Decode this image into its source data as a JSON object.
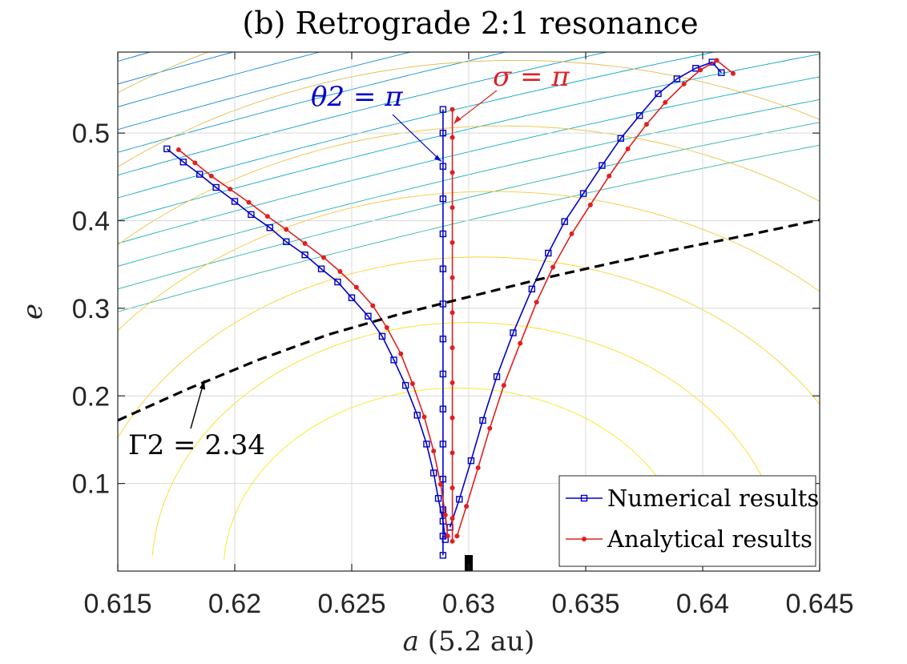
{
  "chart_data": {
    "type": "line",
    "title": "(b) Retrograde 2:1 resonance",
    "xlabel": "a (5.2 au)",
    "ylabel": "e",
    "xlim": [
      0.615,
      0.645
    ],
    "ylim": [
      0.0,
      0.5925
    ],
    "xticks": [
      0.615,
      0.62,
      0.625,
      0.63,
      0.635,
      0.64,
      0.645
    ],
    "xtick_labels": [
      "0.615",
      "0.62",
      "0.625",
      "0.63",
      "0.635",
      "0.64",
      "0.645"
    ],
    "yticks": [
      0.1,
      0.2,
      0.3,
      0.4,
      0.5
    ],
    "ytick_labels": [
      "0.1",
      "0.2",
      "0.3",
      "0.4",
      "0.5"
    ],
    "grid": true,
    "legend_position": "bottom-right",
    "legend": [
      {
        "label": "Numerical results",
        "color": "#0000cc",
        "marker": "square"
      },
      {
        "label": "Analytical results",
        "color": "#e02020",
        "marker": "dot"
      }
    ],
    "series": [
      {
        "name": "Numerical results",
        "color": "#0000cc",
        "marker": "square",
        "branches": [
          {
            "name": "left",
            "x": [
              0.6171,
              0.6178,
              0.6185,
              0.6192,
              0.62,
              0.6207,
              0.6215,
              0.6222,
              0.623,
              0.6237,
              0.6244,
              0.625,
              0.6257,
              0.6263,
              0.6268,
              0.6273,
              0.6278,
              0.6282,
              0.6285,
              0.6287,
              0.6289,
              0.629
            ],
            "y": [
              0.482,
              0.467,
              0.453,
              0.438,
              0.422,
              0.407,
              0.392,
              0.376,
              0.361,
              0.345,
              0.33,
              0.312,
              0.291,
              0.268,
              0.241,
              0.212,
              0.178,
              0.145,
              0.112,
              0.083,
              0.057,
              0.036
            ]
          },
          {
            "name": "middle",
            "x": [
              0.6289,
              0.6289,
              0.6289,
              0.6289,
              0.6289,
              0.6289,
              0.6289,
              0.6289,
              0.6289,
              0.6289,
              0.6289,
              0.6289,
              0.6289,
              0.6289,
              0.6289
            ],
            "y": [
              0.527,
              0.5,
              0.462,
              0.425,
              0.385,
              0.345,
              0.305,
              0.265,
              0.225,
              0.185,
              0.145,
              0.105,
              0.07,
              0.04,
              0.018
            ]
          },
          {
            "name": "right",
            "x": [
              0.6292,
              0.6296,
              0.6301,
              0.6306,
              0.6312,
              0.6319,
              0.6327,
              0.6334,
              0.6341,
              0.6349,
              0.6357,
              0.6365,
              0.6373,
              0.6381,
              0.6389,
              0.6397,
              0.6404,
              0.6408
            ],
            "y": [
              0.05,
              0.082,
              0.126,
              0.172,
              0.222,
              0.272,
              0.322,
              0.363,
              0.399,
              0.431,
              0.463,
              0.494,
              0.52,
              0.545,
              0.562,
              0.574,
              0.581,
              0.569
            ]
          }
        ]
      },
      {
        "name": "Analytical results",
        "color": "#e02020",
        "marker": "dot",
        "branches": [
          {
            "name": "left",
            "x": [
              0.6176,
              0.6183,
              0.619,
              0.6198,
              0.6206,
              0.6214,
              0.6222,
              0.623,
              0.6238,
              0.6245,
              0.6252,
              0.6259,
              0.6265,
              0.6271,
              0.6276,
              0.6281,
              0.6285,
              0.6288,
              0.629,
              0.6291
            ],
            "y": [
              0.481,
              0.466,
              0.451,
              0.436,
              0.421,
              0.405,
              0.39,
              0.374,
              0.358,
              0.342,
              0.324,
              0.303,
              0.278,
              0.248,
              0.214,
              0.176,
              0.137,
              0.099,
              0.064,
              0.04
            ]
          },
          {
            "name": "middle",
            "x": [
              0.6293,
              0.6293,
              0.6293,
              0.6293,
              0.6293,
              0.6293,
              0.6293,
              0.6293,
              0.6293,
              0.6293,
              0.6293,
              0.6293,
              0.6293,
              0.6293
            ],
            "y": [
              0.527,
              0.495,
              0.455,
              0.415,
              0.375,
              0.335,
              0.295,
              0.255,
              0.215,
              0.175,
              0.135,
              0.095,
              0.06,
              0.034
            ]
          },
          {
            "name": "right",
            "x": [
              0.6295,
              0.6299,
              0.6304,
              0.6309,
              0.6315,
              0.6322,
              0.6329,
              0.6336,
              0.6344,
              0.6352,
              0.636,
              0.6368,
              0.6376,
              0.6384,
              0.6392,
              0.6399,
              0.6406,
              0.6413
            ],
            "y": [
              0.04,
              0.074,
              0.118,
              0.163,
              0.212,
              0.26,
              0.307,
              0.347,
              0.385,
              0.418,
              0.451,
              0.482,
              0.51,
              0.535,
              0.556,
              0.572,
              0.583,
              0.568
            ]
          }
        ]
      },
      {
        "name": "Γ2 = 2.34",
        "color": "#000000",
        "style": "dashed",
        "x": [
          0.615,
          0.618,
          0.621,
          0.624,
          0.627,
          0.63,
          0.633,
          0.636,
          0.639,
          0.642,
          0.645
        ],
        "y": [
          0.172,
          0.208,
          0.241,
          0.27,
          0.293,
          0.313,
          0.333,
          0.351,
          0.368,
          0.384,
          0.401
        ]
      }
    ],
    "annotations": [
      {
        "label": "θ2 = π",
        "color": "#0000cc",
        "points_to": {
          "x": 0.6289,
          "y": 0.464
        }
      },
      {
        "label": "σ = π",
        "color": "#e02020",
        "points_to": {
          "x": 0.6293,
          "y": 0.509
        }
      },
      {
        "label": "Γ2 = 2.34",
        "color": "#000000",
        "points_to": {
          "x": 0.6187,
          "y": 0.218
        }
      }
    ],
    "marker_on_axis": {
      "x": 0.63,
      "color": "#000000"
    },
    "background_contours": {
      "count": 40,
      "colormap": "parula"
    }
  }
}
